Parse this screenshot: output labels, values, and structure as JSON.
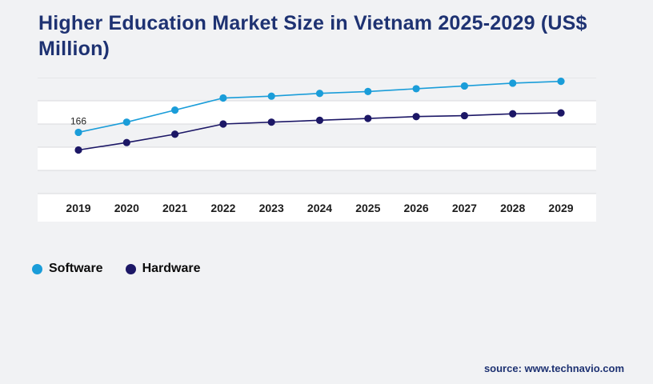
{
  "title": "Higher Education Market Size in Vietnam 2025-2029 (US$ Million)",
  "source": "source: www.technavio.com",
  "legend": [
    {
      "label": "Software",
      "color": "#1a9dd9"
    },
    {
      "label": "Hardware",
      "color": "#1c1766"
    }
  ],
  "colors": {
    "title": "#1e3272",
    "grid_line": "#d9dadc",
    "band_light": "#ffffff",
    "band_shade": "#f1f2f4",
    "axis_label": "#1c1c1c",
    "annotation": "#222222"
  },
  "chart_data": {
    "type": "line",
    "title": "Higher Education Market Size in Vietnam 2025-2029 (US$ Million)",
    "categories": [
      "2019",
      "2020",
      "2021",
      "2022",
      "2023",
      "2024",
      "2025",
      "2026",
      "2027",
      "2028",
      "2029"
    ],
    "series": [
      {
        "name": "Software",
        "color": "#1a9dd9",
        "values": [
          166,
          177,
          190,
          203,
          205,
          208,
          210,
          213,
          216,
          219,
          221
        ]
      },
      {
        "name": "Hardware",
        "color": "#1c1766",
        "values": [
          147,
          155,
          164,
          175,
          177,
          179,
          181,
          183,
          184,
          186,
          187
        ]
      }
    ],
    "annotations": [
      {
        "series": "Software",
        "index": 0,
        "text": "166"
      }
    ],
    "xlabel": "",
    "ylabel": "",
    "ylim": [
      100,
      225
    ],
    "grid": true,
    "legend_position": "bottom-left"
  }
}
